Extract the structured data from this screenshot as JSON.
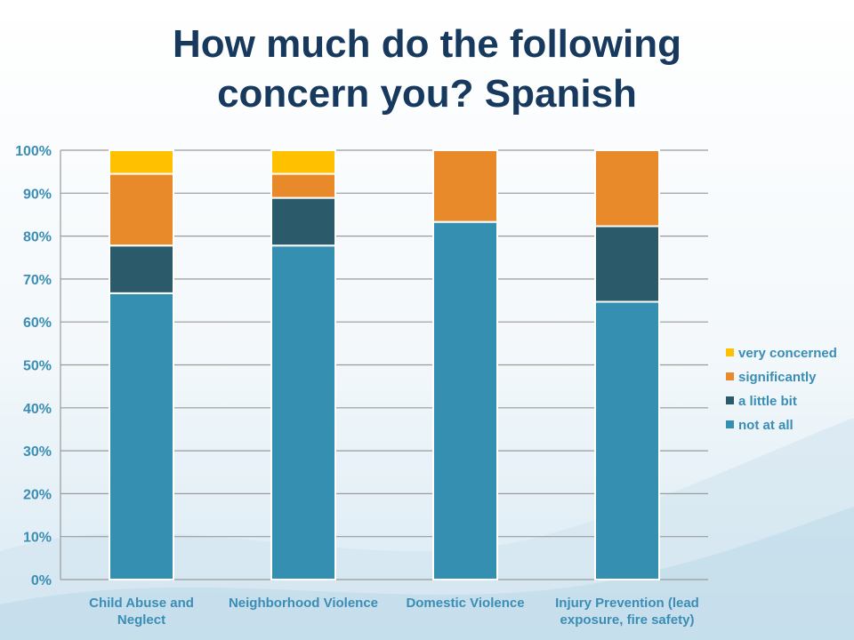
{
  "slide": {
    "title_line1": "How much do the following",
    "title_line2": "concern you? Spanish"
  },
  "colors": {
    "very concerned": "#ffc000",
    "significantly": "#e8892a",
    "a little bit": "#2b5a6b",
    "not at all": "#348fb1",
    "axis_text": "#3a8db5",
    "title": "#17395e",
    "grid": "#9a9a9a"
  },
  "chart_data": {
    "type": "bar",
    "stacked": true,
    "categories": [
      [
        "Child Abuse and",
        "Neglect"
      ],
      [
        "Neighborhood Violence"
      ],
      [
        "Domestic Violence"
      ],
      [
        "Injury Prevention (lead",
        "exposure, fire safety)"
      ]
    ],
    "series": [
      {
        "name": "not at all",
        "values": [
          66.7,
          77.8,
          83.3,
          64.7
        ]
      },
      {
        "name": "a little bit",
        "values": [
          11.1,
          11.1,
          0,
          17.6
        ]
      },
      {
        "name": " significantly",
        "values": [
          16.7,
          5.6,
          16.7,
          17.7
        ]
      },
      {
        "name": "very concerned",
        "values": [
          5.5,
          5.5,
          0,
          0
        ]
      }
    ],
    "ylim": [
      0,
      100
    ],
    "yticks": [
      "0%",
      "10%",
      "20%",
      "30%",
      "40%",
      "50%",
      "60%",
      "70%",
      "80%",
      "90%",
      "100%"
    ],
    "legend_order": [
      "very concerned",
      " significantly",
      "a little bit",
      "not at all"
    ],
    "legend_position": "right",
    "grid": true
  }
}
